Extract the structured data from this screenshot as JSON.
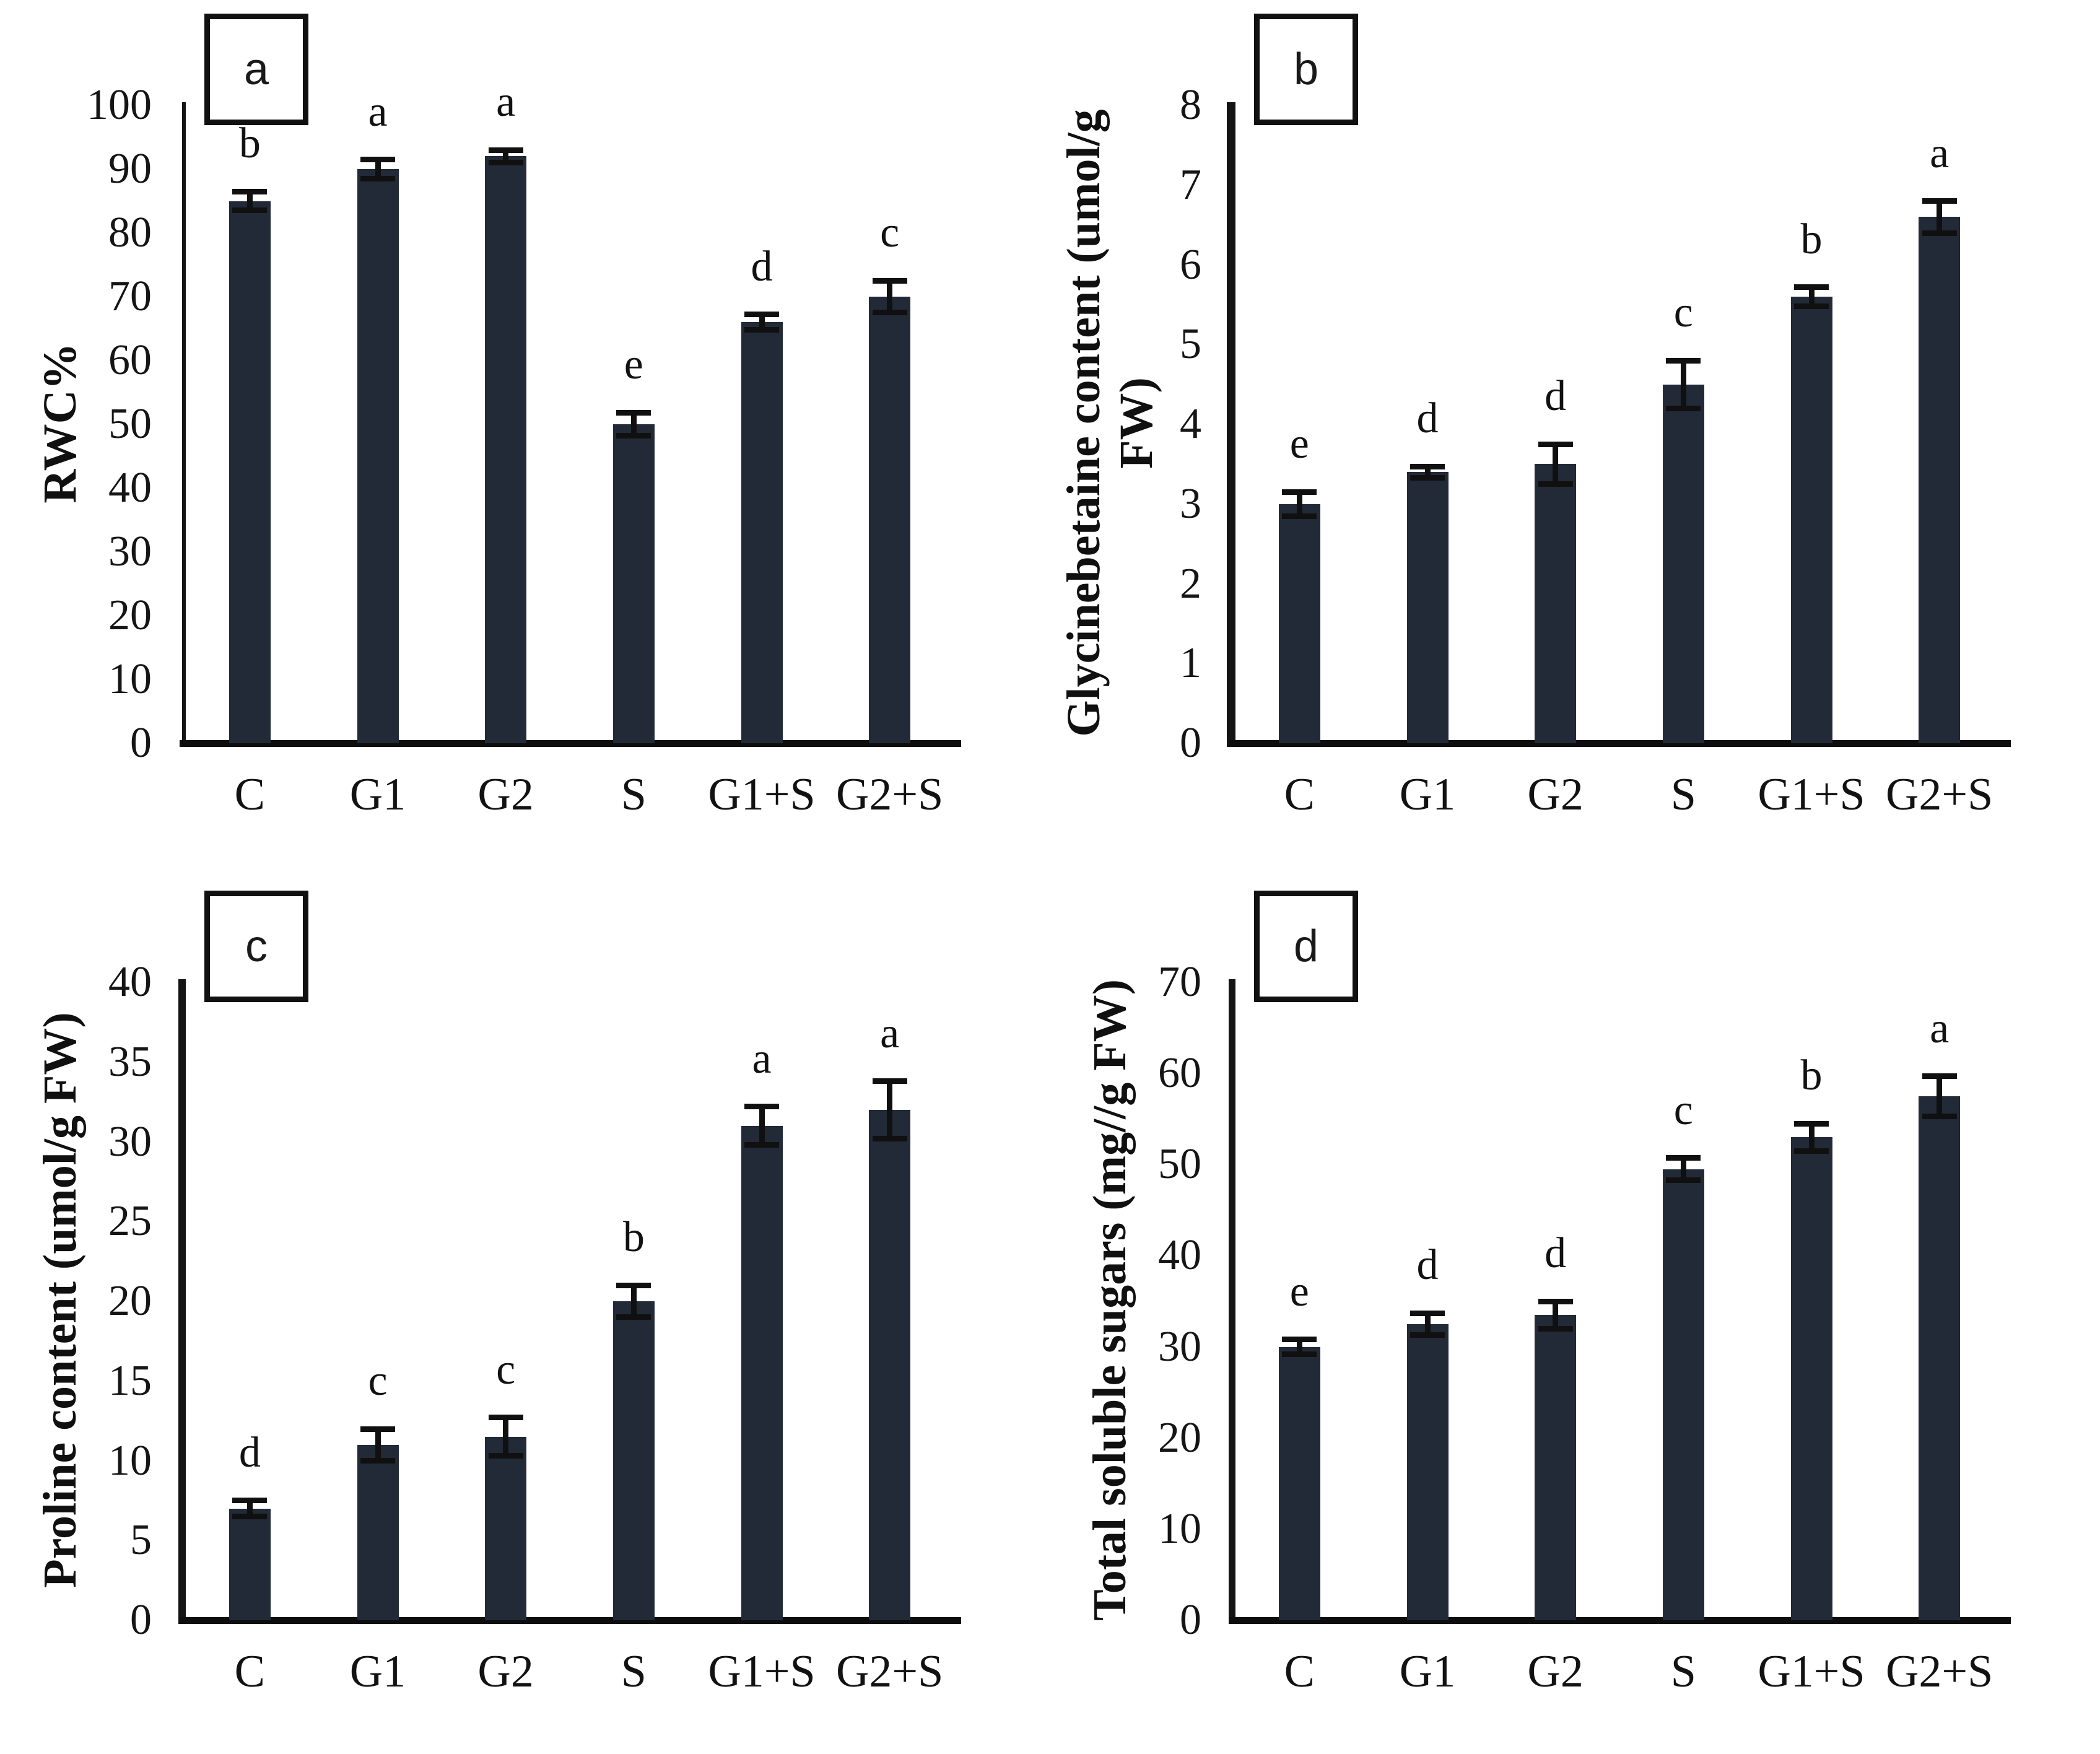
{
  "figure": {
    "background": "#ffffff",
    "bar_color": "#222a38",
    "axis_color": "#141414",
    "error_bar_color": "#101010"
  },
  "chart_data": [
    {
      "type": "bar",
      "panel_letter": "a",
      "ylabel": "RWC%",
      "ylabel_lines": [
        "RWC%"
      ],
      "xlabel": "",
      "ylim": [
        0,
        100
      ],
      "yticks": [
        "0",
        "10",
        "20",
        "30",
        "40",
        "50",
        "60",
        "70",
        "80",
        "90",
        "100"
      ],
      "categories": [
        "C",
        "G1",
        "G2",
        "S",
        "G1+S",
        "G2+S"
      ],
      "values": [
        85,
        90,
        92,
        50,
        66,
        70
      ],
      "errors": [
        1.5,
        1.5,
        1.0,
        1.8,
        1.2,
        2.5
      ],
      "sig_letters": [
        "b",
        "a",
        "a",
        "e",
        "d",
        "c"
      ],
      "grid": false,
      "legend_position": "none"
    },
    {
      "type": "bar",
      "panel_letter": "b",
      "ylabel": "Glycinebetaine content (umol/g FW)",
      "ylabel_lines": [
        "Glycinebetaine content (umol/g",
        "FW)"
      ],
      "xlabel": "",
      "ylim": [
        0,
        8
      ],
      "yticks": [
        "0",
        "1",
        "2",
        "3",
        "4",
        "5",
        "6",
        "7",
        "8"
      ],
      "categories": [
        "C",
        "G1",
        "G2",
        "S",
        "G1+S",
        "G2+S"
      ],
      "values": [
        3.0,
        3.4,
        3.5,
        4.5,
        5.6,
        6.6
      ],
      "errors": [
        0.15,
        0.07,
        0.25,
        0.3,
        0.12,
        0.2
      ],
      "sig_letters": [
        "e",
        "d",
        "d",
        "c",
        "b",
        "a"
      ],
      "grid": false,
      "legend_position": "none"
    },
    {
      "type": "bar",
      "panel_letter": "c",
      "ylabel": "Proline content (umol/g FW)",
      "ylabel_lines": [
        "Proline content (umol/g FW)"
      ],
      "xlabel": "",
      "ylim": [
        0,
        40
      ],
      "yticks": [
        "0",
        "5",
        "10",
        "15",
        "20",
        "25",
        "30",
        "35",
        "40"
      ],
      "categories": [
        "C",
        "G1",
        "G2",
        "S",
        "G1+S",
        "G2+S"
      ],
      "values": [
        7,
        11,
        11.5,
        20,
        31,
        32
      ],
      "errors": [
        0.5,
        1.0,
        1.2,
        1.0,
        1.2,
        1.8
      ],
      "sig_letters": [
        "d",
        "c",
        "c",
        "b",
        "a",
        "a"
      ],
      "grid": false,
      "legend_position": "none"
    },
    {
      "type": "bar",
      "panel_letter": "d",
      "ylabel": "Total soluble sugars  (mg//g FW)",
      "ylabel_lines": [
        "Total soluble sugars  (mg//g FW)"
      ],
      "xlabel": "",
      "ylim": [
        0,
        70
      ],
      "yticks": [
        "0",
        "10",
        "20",
        "30",
        "40",
        "50",
        "60",
        "70"
      ],
      "categories": [
        "C",
        "G1",
        "G2",
        "S",
        "G1+S",
        "G2+S"
      ],
      "values": [
        30,
        32.5,
        33.5,
        49.5,
        53,
        57.5
      ],
      "errors": [
        0.8,
        1.2,
        1.5,
        1.2,
        1.5,
        2.2
      ],
      "sig_letters": [
        "e",
        "d",
        "d",
        "c",
        "b",
        "a"
      ],
      "grid": false,
      "legend_position": "none"
    }
  ]
}
